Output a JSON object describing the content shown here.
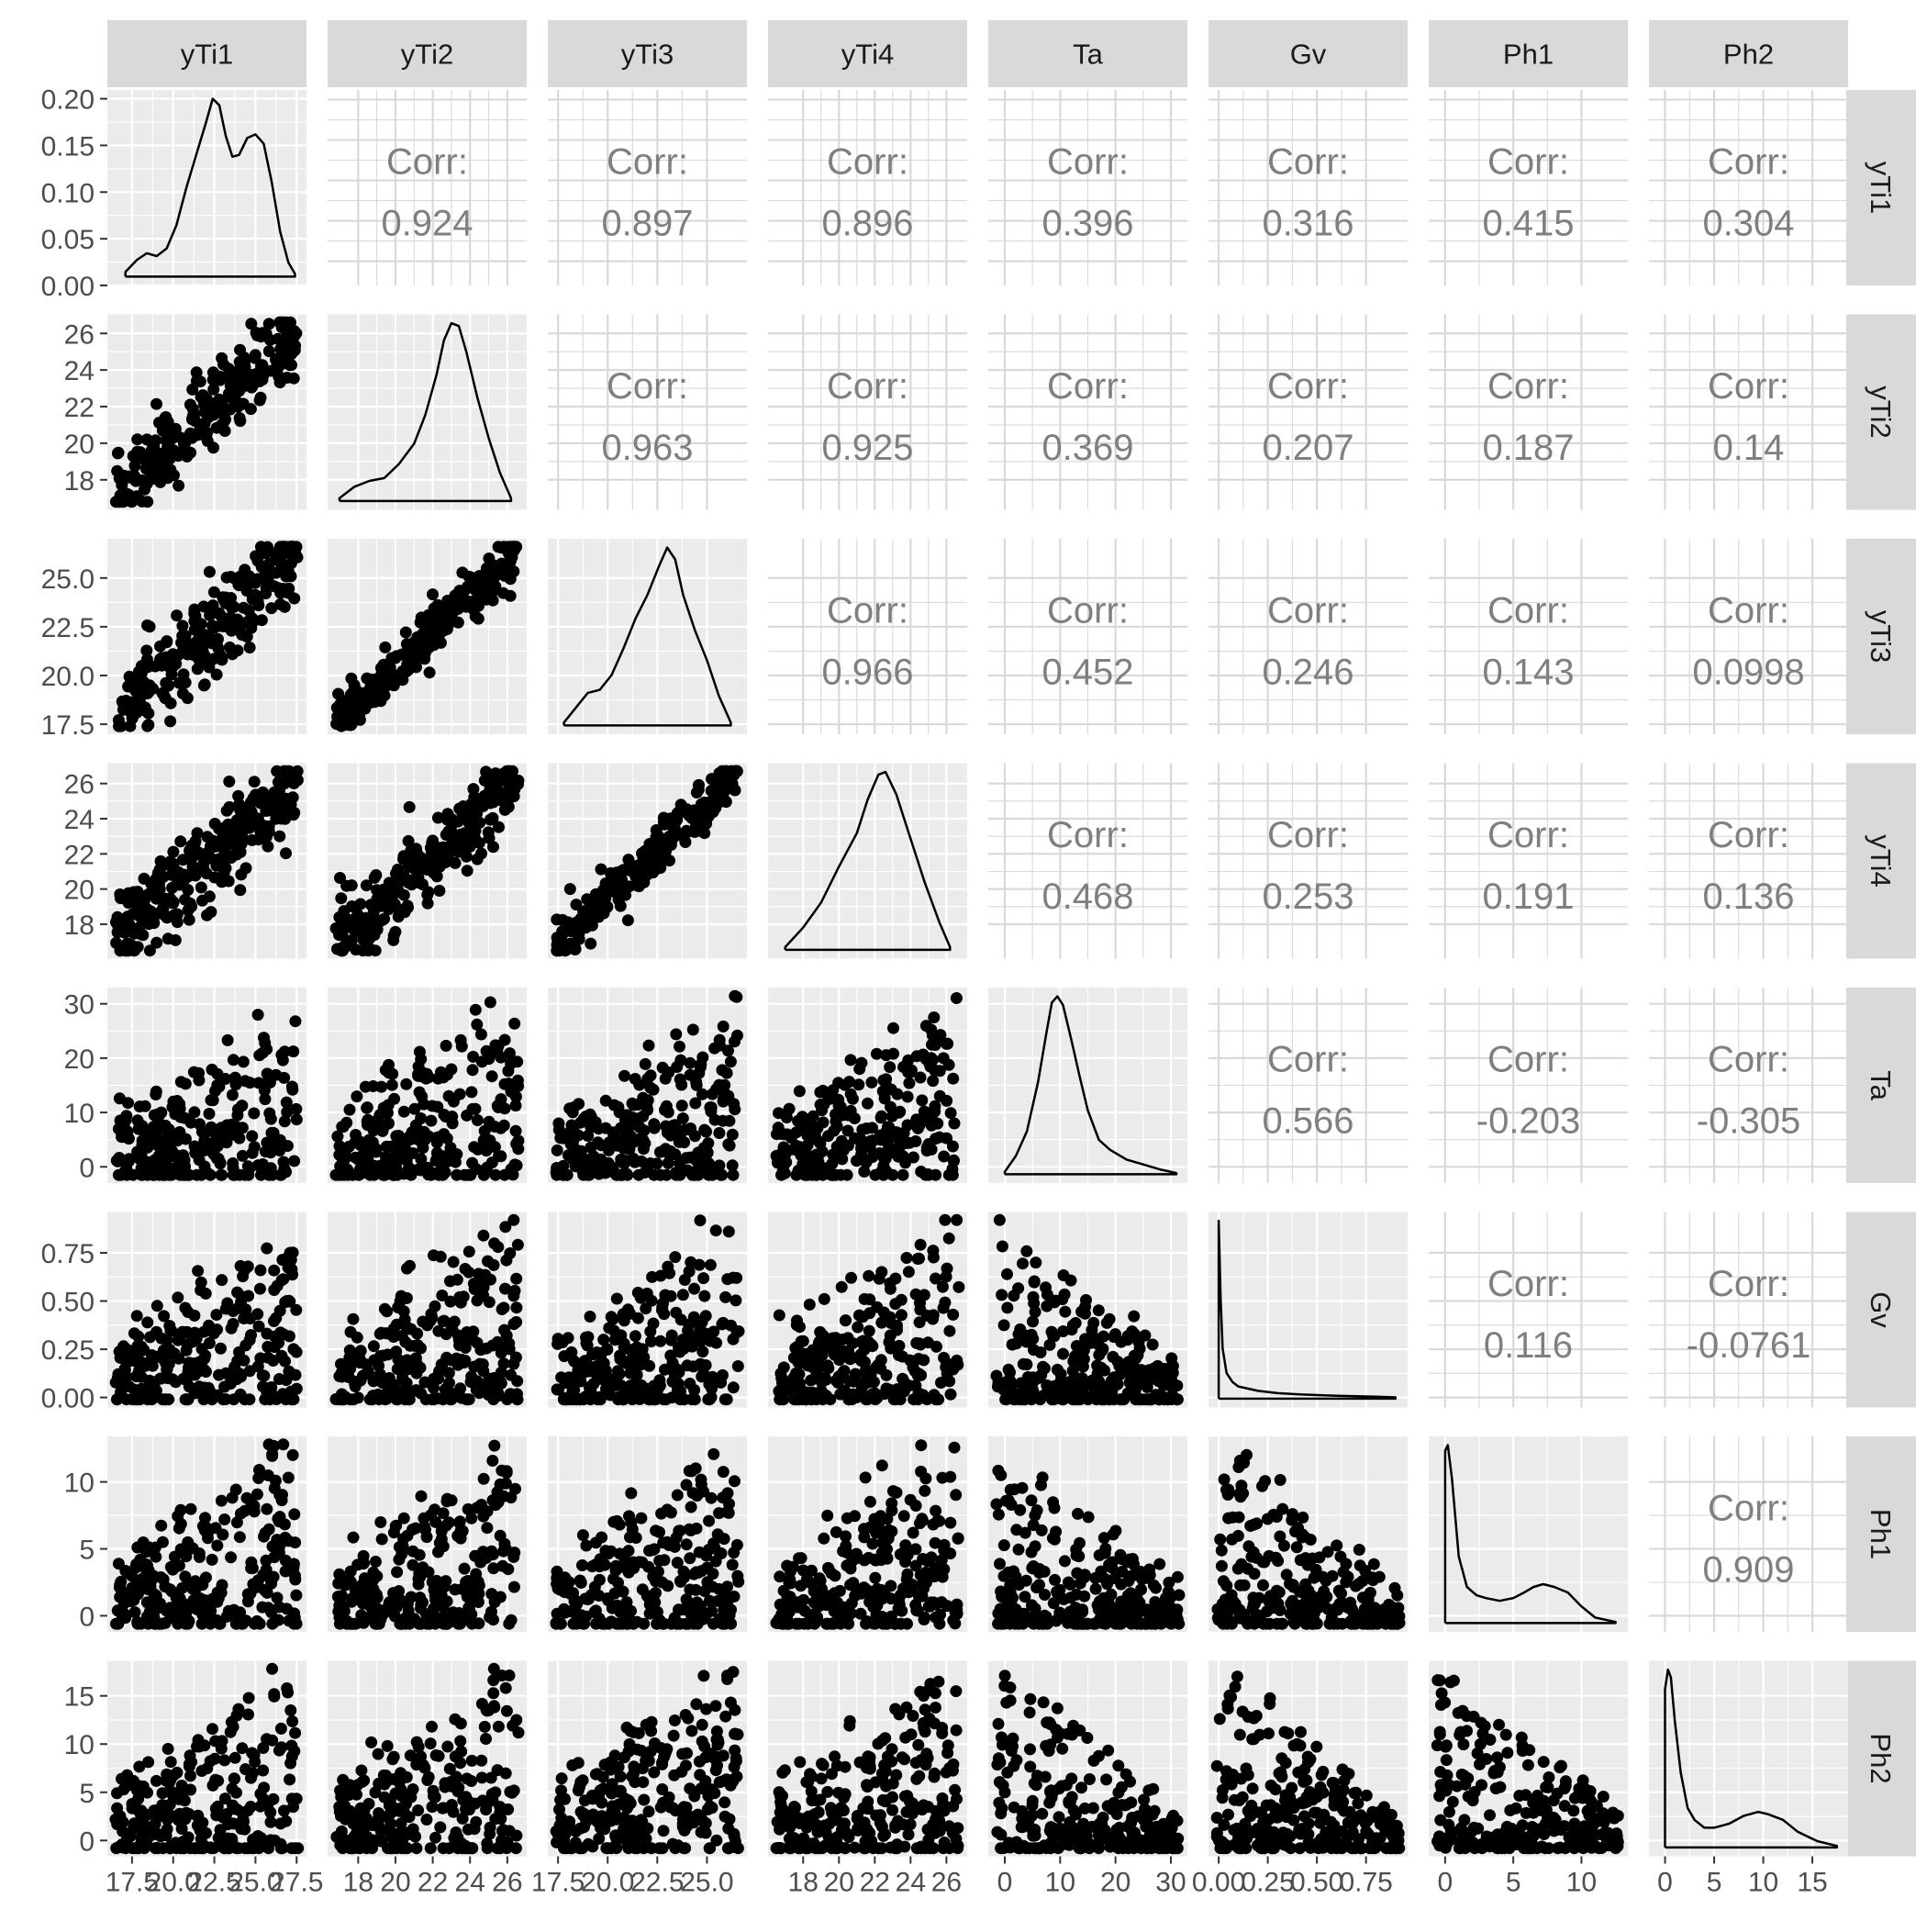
{
  "chart_data": {
    "type": "scatter",
    "matrix_type": "pairs",
    "variables": [
      "yTi1",
      "yTi2",
      "yTi3",
      "yTi4",
      "Ta",
      "Gv",
      "Ph1",
      "Ph2"
    ],
    "corr_label": "Corr:",
    "correlations": [
      [
        "",
        "0.924",
        "0.897",
        "0.896",
        "0.396",
        "0.316",
        "0.415",
        "0.304"
      ],
      [
        "",
        "",
        "0.963",
        "0.925",
        "0.369",
        "0.207",
        "0.187",
        "0.14"
      ],
      [
        "",
        "",
        "",
        "0.966",
        "0.452",
        "0.246",
        "0.143",
        "0.0998"
      ],
      [
        "",
        "",
        "",
        "",
        "0.468",
        "0.253",
        "0.191",
        "0.136"
      ],
      [
        "",
        "",
        "",
        "",
        "",
        "0.566",
        "-0.203",
        "-0.305"
      ],
      [
        "",
        "",
        "",
        "",
        "",
        "",
        "0.116",
        "-0.0761"
      ],
      [
        "",
        "",
        "",
        "",
        "",
        "",
        "",
        "0.909"
      ],
      [
        "",
        "",
        "",
        "",
        "",
        "",
        "",
        ""
      ]
    ],
    "axes": [
      {
        "var": "yTi1",
        "range": [
          16.5,
          27.6
        ],
        "ticks": [
          "17.5",
          "20.0",
          "22.5",
          "25.0",
          "27.5"
        ]
      },
      {
        "var": "yTi2",
        "range": [
          16.8,
          26.6
        ],
        "ticks": [
          "18",
          "20",
          "22",
          "24",
          "26"
        ]
      },
      {
        "var": "yTi3",
        "range": [
          17.4,
          26.6
        ],
        "ticks": [
          "17.5",
          "20.0",
          "22.5",
          "25.0"
        ]
      },
      {
        "var": "yTi4",
        "range": [
          16.5,
          26.7
        ],
        "ticks": [
          "18",
          "20",
          "22",
          "24",
          "26"
        ]
      },
      {
        "var": "Ta",
        "range": [
          -1.5,
          31.5
        ],
        "ticks": [
          "0",
          "10",
          "20",
          "30"
        ]
      },
      {
        "var": "Gv",
        "range": [
          -0.01,
          0.92
        ],
        "ticks": [
          "0.00",
          "0.25",
          "0.50",
          "0.75"
        ]
      },
      {
        "var": "Ph1",
        "range": [
          -0.6,
          12.8
        ],
        "ticks": [
          "0",
          "5",
          "10"
        ]
      },
      {
        "var": "Ph2",
        "range": [
          -0.8,
          17.8
        ],
        "ticks": [
          "0",
          "5",
          "10",
          "15"
        ]
      }
    ],
    "density_y_axis": {
      "range": [
        0,
        0.2
      ],
      "ticks": [
        "0.00",
        "0.05",
        "0.10",
        "0.15",
        "0.20"
      ]
    },
    "densities": [
      {
        "var": "yTi1",
        "x": [
          17.1,
          17.8,
          18.4,
          19.0,
          19.6,
          20.2,
          20.8,
          21.4,
          22.0,
          22.4,
          22.8,
          23.2,
          23.6,
          24.0,
          24.5,
          25.0,
          25.5,
          26.0,
          26.5,
          27.0,
          27.4
        ],
        "y": [
          0.005,
          0.018,
          0.025,
          0.022,
          0.03,
          0.055,
          0.095,
          0.13,
          0.165,
          0.19,
          0.183,
          0.15,
          0.128,
          0.13,
          0.148,
          0.152,
          0.142,
          0.1,
          0.048,
          0.015,
          0.003
        ]
      },
      {
        "var": "yTi2",
        "x": [
          17.0,
          17.8,
          18.6,
          19.4,
          20.2,
          21.0,
          21.6,
          22.2,
          22.6,
          23.0,
          23.4,
          23.8,
          24.4,
          25.0,
          25.6,
          26.2
        ],
        "y": [
          0.005,
          0.025,
          0.035,
          0.04,
          0.065,
          0.1,
          0.15,
          0.22,
          0.28,
          0.31,
          0.305,
          0.26,
          0.18,
          0.11,
          0.05,
          0.005
        ]
      },
      {
        "var": "yTi3",
        "x": [
          17.8,
          18.4,
          19.0,
          19.6,
          20.2,
          20.8,
          21.4,
          22.0,
          22.6,
          23.0,
          23.4,
          23.8,
          24.4,
          25.0,
          25.6,
          26.2
        ],
        "y": [
          0.005,
          0.03,
          0.055,
          0.06,
          0.085,
          0.13,
          0.18,
          0.22,
          0.27,
          0.3,
          0.28,
          0.22,
          0.16,
          0.11,
          0.05,
          0.005
        ]
      },
      {
        "var": "yTi4",
        "x": [
          17.0,
          18.0,
          19.0,
          20.0,
          21.0,
          21.6,
          22.2,
          22.6,
          23.2,
          24.0,
          24.8,
          25.6,
          26.2
        ],
        "y": [
          0.005,
          0.04,
          0.085,
          0.15,
          0.21,
          0.27,
          0.315,
          0.32,
          0.28,
          0.2,
          0.12,
          0.05,
          0.005
        ]
      },
      {
        "var": "Ta",
        "x": [
          0.0,
          2.0,
          4.0,
          6.0,
          7.5,
          8.5,
          9.5,
          10.5,
          12.0,
          13.5,
          15.0,
          17.0,
          19.0,
          22.0,
          25.0,
          28.0,
          31.0
        ],
        "y": [
          0.002,
          0.015,
          0.035,
          0.075,
          0.115,
          0.14,
          0.145,
          0.138,
          0.11,
          0.08,
          0.052,
          0.028,
          0.02,
          0.012,
          0.008,
          0.004,
          0.001
        ]
      },
      {
        "var": "Gv",
        "x": [
          0.0,
          0.01,
          0.02,
          0.04,
          0.07,
          0.1,
          0.15,
          0.2,
          0.3,
          0.4,
          0.5,
          0.6,
          0.7,
          0.8,
          0.9
        ],
        "y": [
          16.0,
          9.0,
          4.5,
          2.3,
          1.5,
          1.1,
          0.9,
          0.7,
          0.5,
          0.4,
          0.32,
          0.26,
          0.22,
          0.18,
          0.12
        ]
      },
      {
        "var": "Ph1",
        "x": [
          0.0,
          0.2,
          0.5,
          1.0,
          1.6,
          2.3,
          3.0,
          4.0,
          5.0,
          5.8,
          6.5,
          7.2,
          8.0,
          9.0,
          10.0,
          11.0,
          12.5
        ],
        "y": [
          0.31,
          0.32,
          0.26,
          0.12,
          0.065,
          0.05,
          0.045,
          0.04,
          0.045,
          0.055,
          0.065,
          0.07,
          0.065,
          0.055,
          0.03,
          0.01,
          0.002
        ]
      },
      {
        "var": "Ph2",
        "x": [
          0.0,
          0.3,
          0.6,
          1.0,
          1.6,
          2.3,
          3.0,
          4.0,
          5.0,
          6.5,
          8.0,
          9.5,
          10.5,
          12.0,
          13.5,
          15.5,
          17.5
        ],
        "y": [
          0.2,
          0.225,
          0.215,
          0.16,
          0.095,
          0.05,
          0.035,
          0.025,
          0.025,
          0.03,
          0.04,
          0.045,
          0.042,
          0.035,
          0.02,
          0.008,
          0.002
        ]
      }
    ]
  }
}
